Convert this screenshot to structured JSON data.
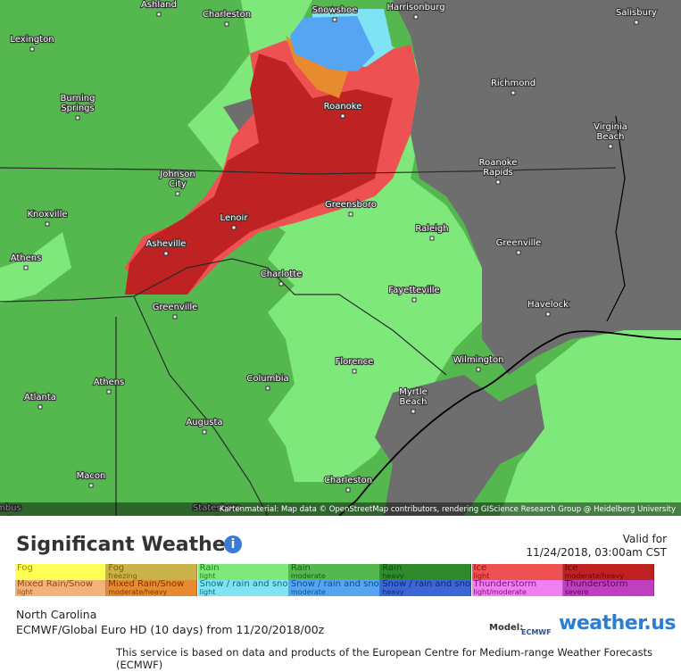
{
  "map": {
    "cities": [
      {
        "lines": [
          "Ashland"
        ]
      },
      {
        "lines": [
          "Charleston"
        ]
      },
      {
        "lines": [
          "Snowshoe"
        ]
      },
      {
        "lines": [
          "Harrisonburg"
        ]
      },
      {
        "lines": [
          "Salisbury"
        ]
      },
      {
        "lines": [
          "Lexington"
        ]
      },
      {
        "lines": [
          "Richmond"
        ]
      },
      {
        "lines": [
          "Burning",
          "Springs"
        ]
      },
      {
        "lines": [
          "Roanoke"
        ]
      },
      {
        "lines": [
          "Virginia",
          "Beach"
        ]
      },
      {
        "lines": [
          "Roanoke",
          "Rapids"
        ]
      },
      {
        "lines": [
          "Johnson",
          "City"
        ]
      },
      {
        "lines": [
          "Greensboro"
        ]
      },
      {
        "lines": [
          "Knoxville"
        ]
      },
      {
        "lines": [
          "Lenoir"
        ]
      },
      {
        "lines": [
          "Raleigh"
        ]
      },
      {
        "lines": [
          "Asheville"
        ]
      },
      {
        "lines": [
          "Greenville"
        ]
      },
      {
        "lines": [
          "Athens"
        ]
      },
      {
        "lines": [
          "Charlotte"
        ]
      },
      {
        "lines": [
          "Fayetteville"
        ]
      },
      {
        "lines": [
          "Havelock"
        ]
      },
      {
        "lines": [
          "Greenville"
        ]
      },
      {
        "lines": [
          "Wilmington"
        ]
      },
      {
        "lines": [
          "Florence"
        ]
      },
      {
        "lines": [
          "Athens"
        ]
      },
      {
        "lines": [
          "Columbia"
        ]
      },
      {
        "lines": [
          "Myrtle",
          "Beach"
        ]
      },
      {
        "lines": [
          "Atlanta"
        ]
      },
      {
        "lines": [
          "Augusta"
        ]
      },
      {
        "lines": [
          "Macon"
        ]
      },
      {
        "lines": [
          "Charleston"
        ]
      },
      {
        "lines": [
          "Statesboro"
        ]
      },
      {
        "lines": [
          "mbus"
        ]
      }
    ],
    "attribution": "Kartenmaterial: Map data © OpenStreetMap contributors, rendering GIScience Research Group @ Heidelberg University"
  },
  "panel": {
    "title": "Significant Weather",
    "info_icon": "i",
    "valid_label": "Valid for",
    "valid_time": "11/24/2018, 03:00am CST",
    "legend": [
      [
        {
          "name": "Fog",
          "color": "#ffff55",
          "text": "#a08a00"
        },
        {
          "name": "Fog",
          "detail": "freezing",
          "color": "#c9b24a",
          "text": "#7a6300"
        },
        {
          "name": "Rain",
          "detail": "light",
          "color": "#7ee87a",
          "text": "#1d7a1d"
        },
        {
          "name": "Rain",
          "detail": "moderate",
          "color": "#55b84f",
          "text": "#135e13"
        },
        {
          "name": "Rain",
          "detail": "heavy",
          "color": "#2f8a2c",
          "text": "#0d4d0d"
        },
        {
          "name": "Ice",
          "detail": "light",
          "color": "#ee5151",
          "text": "#8a0f0f"
        },
        {
          "name": "Ice",
          "detail": "moderate/heavy",
          "color": "#be2222",
          "text": "#6a0505"
        }
      ],
      [
        {
          "name": "Mixed Rain/Snow",
          "detail": "light",
          "color": "#f4b27a",
          "text": "#8a4a10"
        },
        {
          "name": "Mixed Rain/Snow",
          "detail": "moderate/heavy",
          "color": "#e88a2e",
          "text": "#7a3800"
        },
        {
          "name": "Snow / rain and snow",
          "detail": "light",
          "color": "#7ee3f3",
          "text": "#0e6c7a"
        },
        {
          "name": "Snow / rain and snow",
          "detail": "moderate",
          "color": "#56a5f3",
          "text": "#0f4b8a"
        },
        {
          "name": "Snow / rain and snow",
          "detail": "heavy",
          "color": "#3a66d6",
          "text": "#0d2a70"
        },
        {
          "name": "Thunderstorm",
          "detail": "light/moderate",
          "color": "#f27ef2",
          "text": "#7a117a"
        },
        {
          "name": "Thunderstorm",
          "detail": "severe",
          "color": "#bf3fc0",
          "text": "#5a055a"
        }
      ]
    ],
    "region": "North Carolina",
    "model_run": "ECMWF/Global Euro HD (10 days) from 11/20/2018/00z",
    "model_label": "Model:",
    "ecmwf": "ECMWF",
    "brand": "weather.us",
    "footer": "This service is based on data and products of the European Centre for Medium-range Weather Forecasts (ECMWF)"
  }
}
